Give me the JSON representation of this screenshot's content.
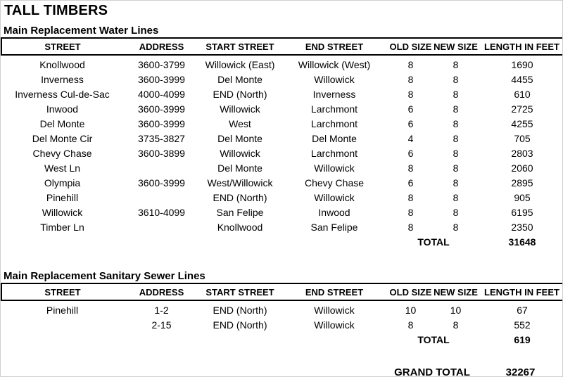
{
  "page_title": "TALL TIMBERS",
  "water_table": {
    "title": "Main Replacement Water Lines",
    "columns": [
      "STREET",
      "ADDRESS",
      "START STREET",
      "END STREET",
      "OLD SIZE",
      "NEW SIZE",
      "LENGTH IN FEET"
    ],
    "rows": [
      [
        "Knollwood",
        "3600-3799",
        "Willowick (East)",
        "Willowick (West)",
        "8",
        "8",
        "1690"
      ],
      [
        "Inverness",
        "3600-3999",
        "Del Monte",
        "Willowick",
        "8",
        "8",
        "4455"
      ],
      [
        "Inverness Cul-de-Sac",
        "4000-4099",
        "END (North)",
        "Inverness",
        "8",
        "8",
        "610"
      ],
      [
        "Inwood",
        "3600-3999",
        "Willowick",
        "Larchmont",
        "6",
        "8",
        "2725"
      ],
      [
        "Del Monte",
        "3600-3999",
        "West",
        "Larchmont",
        "6",
        "8",
        "4255"
      ],
      [
        "Del Monte Cir",
        "3735-3827",
        "Del Monte",
        "Del Monte",
        "4",
        "8",
        "705"
      ],
      [
        "Chevy Chase",
        "3600-3899",
        "Willowick",
        "Larchmont",
        "6",
        "8",
        "2803"
      ],
      [
        "West Ln",
        "",
        "Del Monte",
        "Willowick",
        "8",
        "8",
        "2060"
      ],
      [
        "Olympia",
        "3600-3999",
        "West/Willowick",
        "Chevy Chase",
        "6",
        "8",
        "2895"
      ],
      [
        "Pinehill",
        "",
        "END (North)",
        "Willowick",
        "8",
        "8",
        "905"
      ],
      [
        "Willowick",
        "3610-4099",
        "San Felipe",
        "Inwood",
        "8",
        "8",
        "6195"
      ],
      [
        "Timber Ln",
        "",
        "Knollwood",
        "San Felipe",
        "8",
        "8",
        "2350"
      ]
    ],
    "total_label": "TOTAL",
    "total_value": "31648"
  },
  "sewer_table": {
    "title": "Main Replacement Sanitary Sewer Lines",
    "columns": [
      "STREET",
      "ADDRESS",
      "START STREET",
      "END STREET",
      "OLD SIZE",
      "NEW SIZE",
      "LENGTH IN FEET"
    ],
    "rows": [
      [
        "Pinehill",
        "1-2",
        "END (North)",
        "Willowick",
        "10",
        "10",
        "67"
      ],
      [
        "",
        "2-15",
        "END (North)",
        "Willowick",
        "8",
        "8",
        "552"
      ]
    ],
    "total_label": "TOTAL",
    "total_value": "619"
  },
  "grand_total": {
    "label": "GRAND TOTAL",
    "value": "32267"
  }
}
